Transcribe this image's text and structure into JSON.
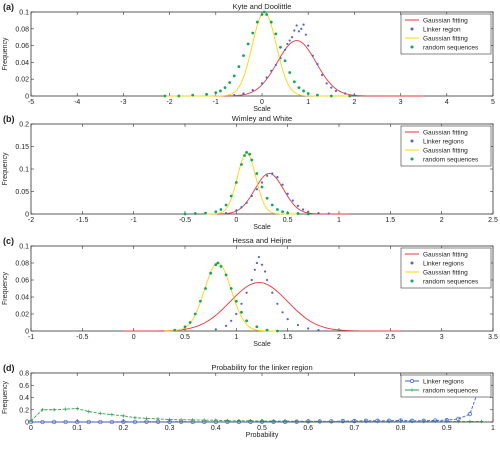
{
  "colors": {
    "gaussian_random": "#ffd400",
    "gaussian_linker": "#e8353c",
    "linker_points": "#4a63d6",
    "random_points": "#0fa85a",
    "axes": "#333333",
    "line_linker_d": "#3b5bdb",
    "line_random_d": "#2e9e53"
  },
  "chart_data": [
    {
      "type": "scatter",
      "panel_label": "(a)",
      "title": "Kyte and Doolittle",
      "xlabel": "Scale",
      "ylabel": "Frequency",
      "xlim": [
        -5,
        5
      ],
      "ylim": [
        0,
        0.1
      ],
      "xticks": [
        -5,
        -4,
        -3,
        -2,
        -1,
        0,
        1,
        2,
        3,
        4,
        5
      ],
      "yticks": [
        0,
        0.02,
        0.04,
        0.06,
        0.08,
        0.1
      ],
      "xtick_labels": [
        "-5",
        "-4",
        "-3",
        "-2",
        "-1",
        "0",
        "1",
        "2",
        "3",
        "4",
        "5"
      ],
      "ytick_labels": [
        "0",
        "0.02",
        "0.04",
        "0.06",
        "0.08",
        "0.1"
      ],
      "legend": [
        "Gaussian fitting",
        "Linker region",
        "Gaussian fitting",
        "random sequences"
      ],
      "legend_position": "top-right",
      "fits": [
        {
          "role": "linker",
          "mu": 0.75,
          "sigma": 0.42,
          "peak": 0.066,
          "range": [
            -1.6,
            3.5
          ]
        },
        {
          "role": "random",
          "mu": 0.05,
          "sigma": 0.26,
          "peak": 0.1,
          "range": [
            -2.1,
            1.9
          ]
        }
      ],
      "linker_points": [
        [
          -0.6,
          0.001
        ],
        [
          -0.4,
          0.003
        ],
        [
          -0.2,
          0.007
        ],
        [
          0.0,
          0.015
        ],
        [
          0.1,
          0.022
        ],
        [
          0.2,
          0.03
        ],
        [
          0.3,
          0.037
        ],
        [
          0.4,
          0.045
        ],
        [
          0.5,
          0.055
        ],
        [
          0.55,
          0.062
        ],
        [
          0.6,
          0.066
        ],
        [
          0.65,
          0.07
        ],
        [
          0.7,
          0.078
        ],
        [
          0.75,
          0.084
        ],
        [
          0.8,
          0.077
        ],
        [
          0.85,
          0.08
        ],
        [
          0.9,
          0.085
        ],
        [
          0.95,
          0.073
        ],
        [
          1.0,
          0.06
        ],
        [
          1.1,
          0.048
        ],
        [
          1.2,
          0.038
        ],
        [
          1.3,
          0.025
        ],
        [
          1.4,
          0.015
        ],
        [
          1.5,
          0.01
        ],
        [
          1.6,
          0.006
        ],
        [
          1.8,
          0.003
        ],
        [
          2.0,
          0.001
        ]
      ],
      "random_points": [
        [
          -2.1,
          0.0
        ],
        [
          -1.8,
          0.0
        ],
        [
          -1.5,
          0.001
        ],
        [
          -1.2,
          0.002
        ],
        [
          -1.0,
          0.004
        ],
        [
          -0.9,
          0.006
        ],
        [
          -0.8,
          0.01
        ],
        [
          -0.7,
          0.016
        ],
        [
          -0.6,
          0.024
        ],
        [
          -0.5,
          0.035
        ],
        [
          -0.4,
          0.048
        ],
        [
          -0.3,
          0.062
        ],
        [
          -0.2,
          0.075
        ],
        [
          -0.1,
          0.088
        ],
        [
          0.0,
          0.097
        ],
        [
          0.05,
          0.1
        ],
        [
          0.1,
          0.097
        ],
        [
          0.2,
          0.088
        ],
        [
          0.3,
          0.074
        ],
        [
          0.4,
          0.058
        ],
        [
          0.5,
          0.042
        ],
        [
          0.6,
          0.028
        ],
        [
          0.7,
          0.017
        ],
        [
          0.8,
          0.01
        ],
        [
          0.9,
          0.006
        ],
        [
          1.0,
          0.003
        ],
        [
          1.2,
          0.001
        ],
        [
          1.5,
          0.0
        ],
        [
          1.9,
          0.0
        ]
      ]
    },
    {
      "type": "scatter",
      "panel_label": "(b)",
      "title": "Wimley and White",
      "xlabel": "Scale",
      "ylabel": "Frequency",
      "xlim": [
        -2,
        2.5
      ],
      "ylim": [
        0,
        0.2
      ],
      "xticks": [
        -2,
        -1.5,
        -1,
        -0.5,
        0,
        0.5,
        1,
        1.5,
        2,
        2.5
      ],
      "yticks": [
        0,
        0.05,
        0.1,
        0.15,
        0.2
      ],
      "xtick_labels": [
        "-2",
        "-1.5",
        "-1",
        "-0.5",
        "0",
        "0.5",
        "1",
        "1.5",
        "2",
        "2.5"
      ],
      "ytick_labels": [
        "0",
        "0.05",
        "0.1",
        "0.15",
        "0.2"
      ],
      "legend": [
        "Gaussian fitting",
        "Linker regions",
        "Gaussian fitting",
        "random sequences"
      ],
      "legend_position": "top-right",
      "fits": [
        {
          "role": "linker",
          "mu": 0.32,
          "sigma": 0.14,
          "peak": 0.09,
          "range": [
            -0.3,
            1.1
          ]
        },
        {
          "role": "random",
          "mu": 0.1,
          "sigma": 0.09,
          "peak": 0.135,
          "range": [
            -0.3,
            0.6
          ]
        }
      ],
      "linker_points": [
        [
          -0.1,
          0.002
        ],
        [
          0.0,
          0.008
        ],
        [
          0.05,
          0.015
        ],
        [
          0.1,
          0.025
        ],
        [
          0.15,
          0.04
        ],
        [
          0.2,
          0.055
        ],
        [
          0.25,
          0.07
        ],
        [
          0.3,
          0.085
        ],
        [
          0.35,
          0.09
        ],
        [
          0.4,
          0.082
        ],
        [
          0.45,
          0.065
        ],
        [
          0.5,
          0.045
        ],
        [
          0.55,
          0.03
        ],
        [
          0.6,
          0.018
        ],
        [
          0.65,
          0.01
        ],
        [
          0.7,
          0.005
        ],
        [
          0.8,
          0.002
        ],
        [
          0.9,
          0.001
        ]
      ],
      "random_points": [
        [
          -0.5,
          0.0
        ],
        [
          -0.4,
          0.001
        ],
        [
          -0.3,
          0.002
        ],
        [
          -0.2,
          0.005
        ],
        [
          -0.15,
          0.01
        ],
        [
          -0.1,
          0.02
        ],
        [
          -0.05,
          0.04
        ],
        [
          0.0,
          0.07
        ],
        [
          0.05,
          0.11
        ],
        [
          0.08,
          0.13
        ],
        [
          0.1,
          0.137
        ],
        [
          0.13,
          0.133
        ],
        [
          0.15,
          0.12
        ],
        [
          0.2,
          0.09
        ],
        [
          0.25,
          0.06
        ],
        [
          0.3,
          0.035
        ],
        [
          0.35,
          0.02
        ],
        [
          0.4,
          0.01
        ],
        [
          0.45,
          0.005
        ],
        [
          0.5,
          0.002
        ],
        [
          0.6,
          0.001
        ],
        [
          0.7,
          0.0
        ]
      ]
    },
    {
      "type": "scatter",
      "panel_label": "(c)",
      "title": "Hessa and Heijne",
      "xlabel": "Scale",
      "ylabel": "Frequency",
      "xlim": [
        -1,
        3.5
      ],
      "ylim": [
        0,
        0.1
      ],
      "xticks": [
        -1,
        -0.5,
        0,
        0.5,
        1,
        1.5,
        2,
        2.5,
        3,
        3.5
      ],
      "yticks": [
        0,
        0.02,
        0.04,
        0.06,
        0.08,
        0.1
      ],
      "xtick_labels": [
        "-1",
        "-0.5",
        "0",
        "0.5",
        "1",
        "1.5",
        "2",
        "2.5",
        "3",
        "3.5"
      ],
      "ytick_labels": [
        "0",
        "0.02",
        "0.04",
        "0.06",
        "0.08",
        "0.1"
      ],
      "legend": [
        "Gaussian fitting",
        "Linker regions",
        "Gaussian fitting",
        "random sequences"
      ],
      "legend_position": "top-right",
      "fits": [
        {
          "role": "linker",
          "mu": 1.22,
          "sigma": 0.28,
          "peak": 0.057,
          "range": [
            -0.1,
            2.6
          ]
        },
        {
          "role": "random",
          "mu": 0.82,
          "sigma": 0.13,
          "peak": 0.08,
          "range": [
            0.3,
            1.4
          ]
        }
      ],
      "linker_points": [
        [
          0.8,
          0.002
        ],
        [
          0.9,
          0.006
        ],
        [
          0.95,
          0.012
        ],
        [
          1.0,
          0.02
        ],
        [
          1.05,
          0.032
        ],
        [
          1.1,
          0.045
        ],
        [
          1.15,
          0.06
        ],
        [
          1.18,
          0.072
        ],
        [
          1.2,
          0.08
        ],
        [
          1.22,
          0.087
        ],
        [
          1.25,
          0.078
        ],
        [
          1.28,
          0.07
        ],
        [
          1.3,
          0.06
        ],
        [
          1.35,
          0.045
        ],
        [
          1.4,
          0.032
        ],
        [
          1.45,
          0.022
        ],
        [
          1.5,
          0.014
        ],
        [
          1.6,
          0.007
        ],
        [
          1.7,
          0.003
        ],
        [
          1.8,
          0.001
        ]
      ],
      "random_points": [
        [
          0.4,
          0.001
        ],
        [
          0.5,
          0.005
        ],
        [
          0.55,
          0.01
        ],
        [
          0.6,
          0.02
        ],
        [
          0.65,
          0.035
        ],
        [
          0.7,
          0.05
        ],
        [
          0.75,
          0.068
        ],
        [
          0.8,
          0.078
        ],
        [
          0.82,
          0.08
        ],
        [
          0.85,
          0.076
        ],
        [
          0.9,
          0.066
        ],
        [
          0.95,
          0.05
        ],
        [
          1.0,
          0.035
        ],
        [
          1.05,
          0.022
        ],
        [
          1.1,
          0.012
        ],
        [
          1.2,
          0.005
        ],
        [
          1.3,
          0.001
        ],
        [
          1.4,
          0.0
        ]
      ]
    },
    {
      "type": "line",
      "panel_label": "(d)",
      "title": "Probability for the linker region",
      "xlabel": "Probability",
      "ylabel": "Frequency",
      "xlim": [
        0,
        1
      ],
      "ylim": [
        0,
        0.8
      ],
      "xticks": [
        0,
        0.1,
        0.2,
        0.3,
        0.4,
        0.5,
        0.6,
        0.7,
        0.8,
        0.9,
        1
      ],
      "yticks": [
        0,
        0.2,
        0.4,
        0.6,
        0.8
      ],
      "xtick_labels": [
        "0",
        "0.1",
        "0.2",
        "0.3",
        "0.4",
        "0.5",
        "0.6",
        "0.7",
        "0.8",
        "0.9",
        "1"
      ],
      "ytick_labels": [
        "0",
        "0.2",
        "0.4",
        "0.6",
        "0.8"
      ],
      "legend": [
        "Linker regions",
        "random sequences"
      ],
      "legend_position": "top-right",
      "x": [
        0.0,
        0.025,
        0.05,
        0.075,
        0.1,
        0.125,
        0.15,
        0.175,
        0.2,
        0.225,
        0.25,
        0.275,
        0.3,
        0.325,
        0.35,
        0.375,
        0.4,
        0.425,
        0.45,
        0.475,
        0.5,
        0.525,
        0.55,
        0.575,
        0.6,
        0.625,
        0.65,
        0.675,
        0.7,
        0.725,
        0.75,
        0.775,
        0.8,
        0.825,
        0.85,
        0.875,
        0.9,
        0.925,
        0.95,
        0.975
      ],
      "series": [
        {
          "name": "Linker regions",
          "values": [
            0.0,
            0.0,
            0.0,
            0.0,
            0.0,
            0.0,
            0.0,
            0.0,
            0.005,
            0.0,
            0.005,
            0.003,
            0.003,
            0.005,
            0.003,
            0.003,
            0.003,
            0.003,
            0.003,
            0.003,
            0.005,
            0.003,
            0.003,
            0.005,
            0.01,
            0.01,
            0.01,
            0.015,
            0.015,
            0.02,
            0.02,
            0.02,
            0.025,
            0.02,
            0.02,
            0.025,
            0.03,
            0.05,
            0.13,
            0.66
          ]
        },
        {
          "name": "random sequences",
          "values": [
            0.02,
            0.2,
            0.2,
            0.21,
            0.22,
            0.17,
            0.14,
            0.12,
            0.1,
            0.07,
            0.06,
            0.05,
            0.04,
            0.035,
            0.035,
            0.03,
            0.03,
            0.02,
            0.02,
            0.02,
            0.015,
            0.015,
            0.015,
            0.012,
            0.012,
            0.012,
            0.01,
            0.01,
            0.01,
            0.01,
            0.01,
            0.01,
            0.01,
            0.01,
            0.01,
            0.01,
            0.01,
            0.01,
            0.01,
            0.01
          ]
        }
      ]
    }
  ]
}
